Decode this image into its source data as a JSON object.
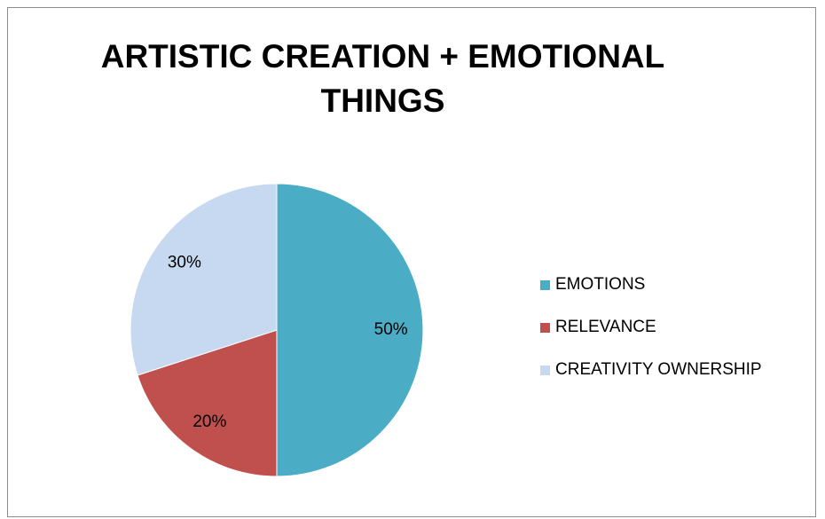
{
  "chart_data": {
    "type": "pie",
    "title": "ARTISTIC CREATION + EMOTIONAL THINGS",
    "categories": [
      "EMOTIONS",
      "RELEVANCE",
      "CREATIVITY OWNERSHIP"
    ],
    "values": [
      50,
      20,
      30
    ],
    "data_labels": [
      "50%",
      "20%",
      "30%"
    ],
    "colors": [
      "#4bacc6",
      "#c0504d",
      "#c6d9f0"
    ],
    "start_angle_deg": 0,
    "direction": "clockwise",
    "legend_position": "right"
  }
}
